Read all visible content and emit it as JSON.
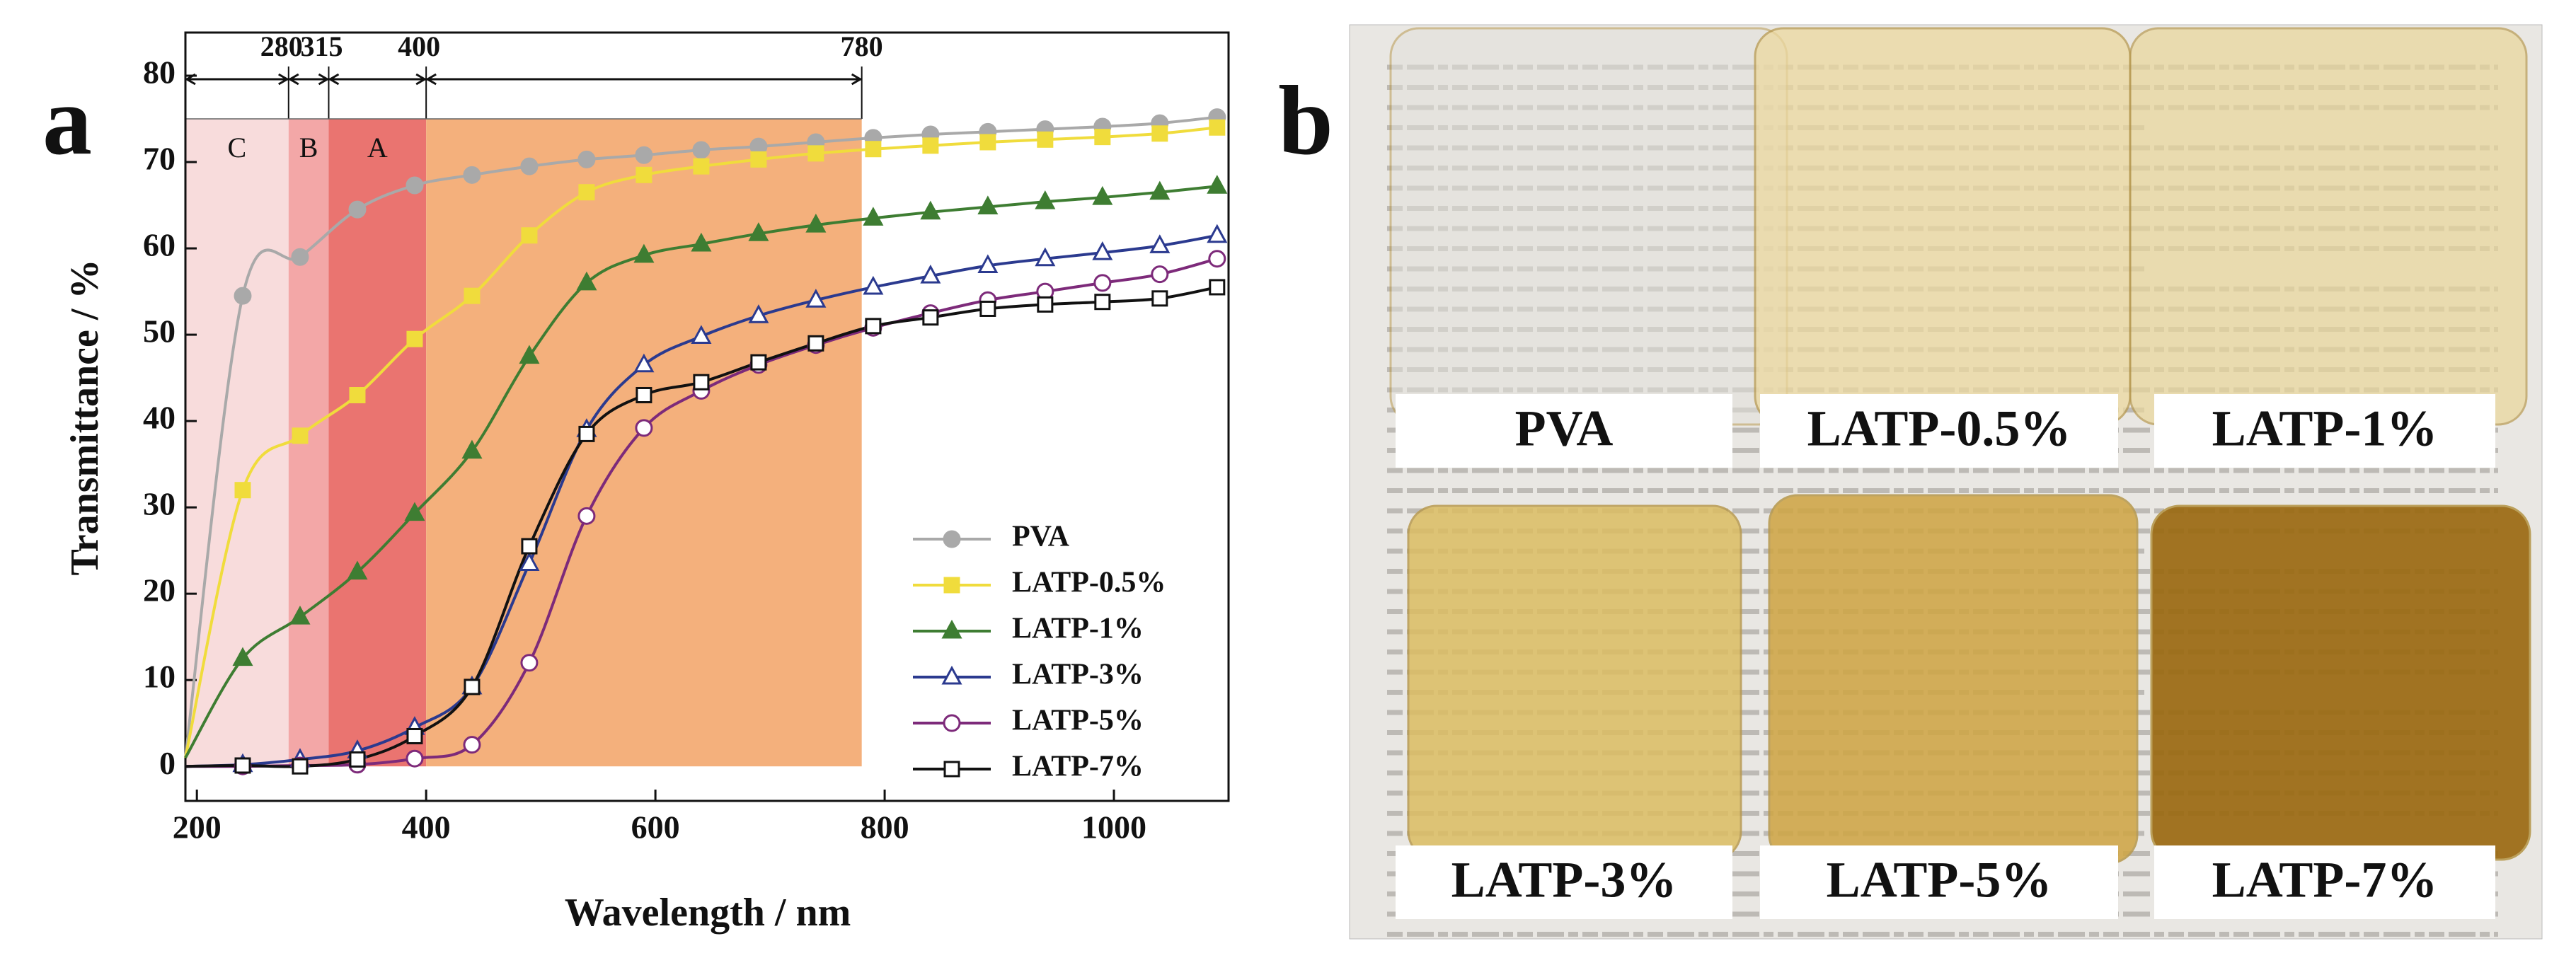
{
  "chart_data": {
    "type": "line",
    "panel_label": "a",
    "x_label": "Wavelength / nm",
    "y_label": "Transmittance / %",
    "x": [
      190,
      240,
      290,
      340,
      390,
      440,
      490,
      540,
      590,
      640,
      690,
      740,
      790,
      840,
      890,
      940,
      990,
      1040,
      1090
    ],
    "series": [
      {
        "name": "PVA",
        "color": "#a9a9a9",
        "marker": "circle",
        "filled": true,
        "values": [
          1,
          54.5,
          59,
          64.5,
          67.3,
          68.5,
          69.5,
          70.3,
          70.8,
          71.4,
          71.8,
          72.3,
          72.8,
          73.2,
          73.5,
          73.8,
          74.1,
          74.5,
          75.2
        ]
      },
      {
        "name": "LATP-0.5%",
        "color": "#f0dc3c",
        "marker": "square",
        "filled": true,
        "values": [
          1,
          32,
          38.3,
          43,
          49.5,
          54.5,
          61.5,
          66.5,
          68.5,
          69.5,
          70.3,
          71,
          71.5,
          71.9,
          72.3,
          72.6,
          72.9,
          73.3,
          74
        ]
      },
      {
        "name": "LATP-1%",
        "color": "#3e7d32",
        "marker": "triangle",
        "filled": true,
        "values": [
          1,
          12.5,
          17.3,
          22.5,
          29.3,
          36.5,
          47.5,
          56,
          59.2,
          60.5,
          61.7,
          62.7,
          63.5,
          64.2,
          64.8,
          65.4,
          65.9,
          66.5,
          67.2
        ]
      },
      {
        "name": "LATP-3%",
        "color": "#2b3a8f",
        "marker": "triangle",
        "filled": false,
        "values": [
          0,
          0.2,
          0.8,
          1.8,
          4.5,
          9.2,
          23.5,
          39,
          46.5,
          49.8,
          52.2,
          54,
          55.5,
          56.8,
          58,
          58.8,
          59.5,
          60.3,
          61.5
        ]
      },
      {
        "name": "LATP-5%",
        "color": "#7d2a7a",
        "marker": "circle",
        "filled": false,
        "values": [
          0,
          0,
          0.1,
          0.2,
          0.9,
          2.5,
          12,
          29,
          39.2,
          43.5,
          46.5,
          48.8,
          50.8,
          52.5,
          54,
          55,
          56,
          57,
          58.8
        ]
      },
      {
        "name": "LATP-7%",
        "color": "#111111",
        "marker": "square",
        "filled": false,
        "values": [
          0,
          0.1,
          0,
          0.8,
          3.5,
          9.2,
          25.5,
          38.5,
          43,
          44.5,
          46.8,
          49,
          51,
          52,
          53,
          53.5,
          53.8,
          54.2,
          55.5
        ]
      }
    ],
    "regions": [
      {
        "label": "C",
        "from": 190,
        "to": 280,
        "color": "#f8dcdc"
      },
      {
        "label": "B",
        "from": 280,
        "to": 315,
        "color": "#f3a7a7"
      },
      {
        "label": "A",
        "from": 315,
        "to": 400,
        "color": "#ea7470"
      },
      {
        "from": 400,
        "to": 780,
        "color": "#f4b07c"
      }
    ],
    "region_top": 75,
    "region_bounds": [
      280,
      315,
      400,
      780
    ],
    "xlim": [
      190,
      1100
    ],
    "ylim": [
      -4,
      85
    ],
    "xticks": [
      200,
      400,
      600,
      800,
      1000
    ],
    "yticks": [
      0,
      10,
      20,
      30,
      40,
      50,
      60,
      70,
      80
    ],
    "legend": "lower right"
  },
  "photo": {
    "panel_label": "b",
    "labels": [
      "PVA",
      "LATP-0.5%",
      "LATP-1%",
      "LATP-3%",
      "LATP-5%",
      "LATP-7%"
    ]
  }
}
